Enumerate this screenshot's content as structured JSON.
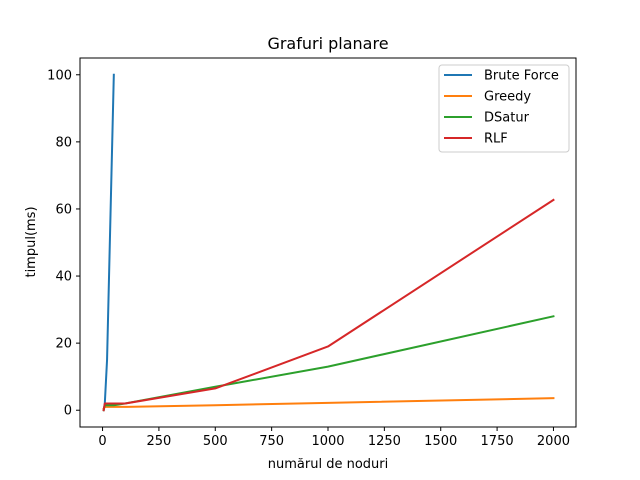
{
  "chart_data": {
    "type": "line",
    "title": "Grafuri planare",
    "xlabel": "numărul de noduri",
    "ylabel": "timpul(ms)",
    "xlim": [
      -100,
      2100
    ],
    "ylim": [
      -5,
      105
    ],
    "xticks": [
      0,
      250,
      500,
      750,
      1000,
      1250,
      1500,
      1750,
      2000
    ],
    "yticks": [
      0,
      20,
      40,
      60,
      80,
      100
    ],
    "grid": false,
    "legend_position": "top-right",
    "series": [
      {
        "name": "Brute Force",
        "color": "#1f77b4",
        "x": [
          5,
          10,
          20,
          50
        ],
        "y": [
          0,
          2,
          15,
          100
        ]
      },
      {
        "name": "Greedy",
        "color": "#ff7f0e",
        "x": [
          5,
          10,
          50,
          100,
          500,
          1000,
          2000
        ],
        "y": [
          0.5,
          1,
          1,
          1,
          1.5,
          2.2,
          3.6
        ]
      },
      {
        "name": "DSatur",
        "color": "#2ca02c",
        "x": [
          5,
          10,
          50,
          100,
          500,
          1000,
          2000
        ],
        "y": [
          0,
          1.5,
          1.5,
          2,
          7,
          13,
          28
        ]
      },
      {
        "name": "RLF",
        "color": "#d62728",
        "x": [
          5,
          10,
          50,
          100,
          500,
          1000,
          2000
        ],
        "y": [
          0,
          2,
          2,
          2,
          6.5,
          19,
          62.7
        ]
      }
    ]
  }
}
